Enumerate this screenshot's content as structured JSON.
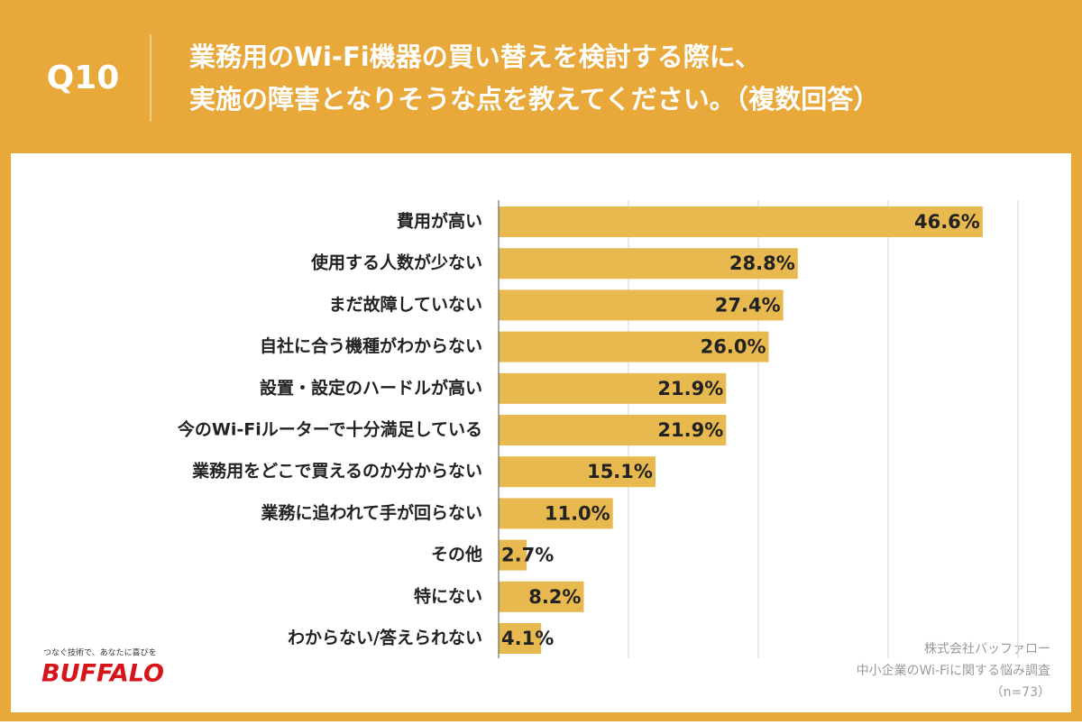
{
  "header": {
    "question": "Q10",
    "title_lines": [
      "業務用のWi-Fi機器の買い替えを検討する際に、",
      "実施の障害となりそうな点を教えてください。（複数回答）"
    ]
  },
  "chart_data": {
    "type": "bar",
    "orientation": "horizontal",
    "categories": [
      "費用が高い",
      "使用する人数が少ない",
      "まだ故障していない",
      "自社に合う機種がわからない",
      "設置・設定のハードルが高い",
      "今のWi-Fiルーターで十分満足している",
      "業務用をどこで買えるのか分からない",
      "業務に追われて手が回らない",
      "その他",
      "特にない",
      "わからない/答えられない"
    ],
    "values": [
      46.6,
      28.8,
      27.4,
      26.0,
      21.9,
      21.9,
      15.1,
      11.0,
      2.7,
      8.2,
      4.1
    ],
    "value_labels": [
      "46.6%",
      "28.8%",
      "27.4%",
      "26.0%",
      "21.9%",
      "21.9%",
      "15.1%",
      "11.0%",
      "2.7%",
      "8.2%",
      "4.1%"
    ],
    "color": "#e8b94f",
    "xlim": [
      0,
      50
    ],
    "gridlines": [
      12.5,
      25,
      37.5,
      50
    ],
    "grid": true
  },
  "footer": {
    "source_lines": [
      "株式会社バッファロー",
      "中小企業のWi-Fiに関する悩み調査",
      "（n=73）"
    ]
  },
  "logo": {
    "tagline": "つなぐ技術で、あなたに喜びを",
    "brand": "BUFFALO"
  }
}
